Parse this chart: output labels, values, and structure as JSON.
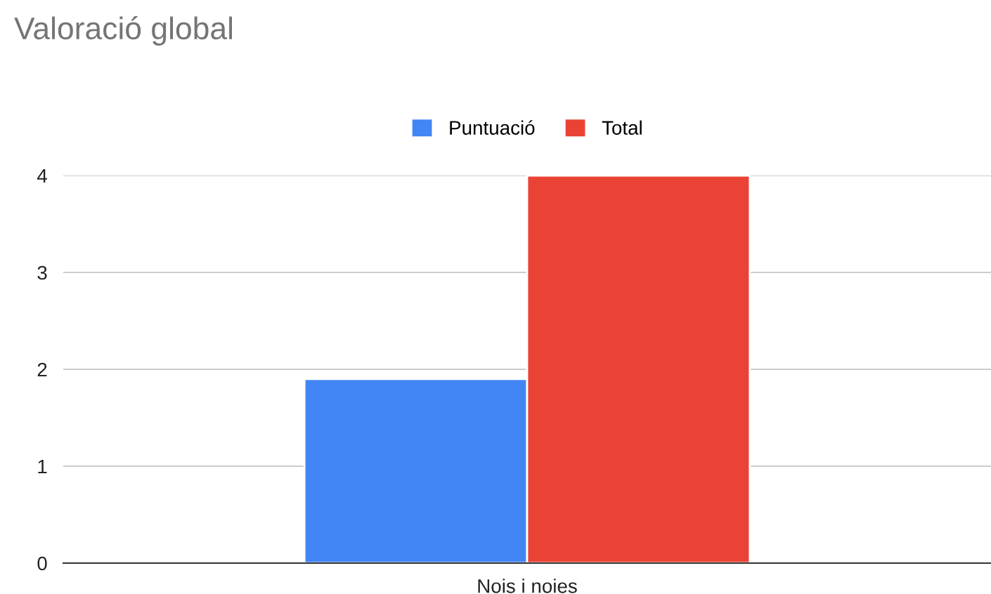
{
  "chart_data": {
    "type": "bar",
    "title": "Valoració global",
    "categories": [
      "Nois i noies"
    ],
    "series": [
      {
        "name": "Puntuació",
        "color": "#4285f4",
        "values": [
          1.9
        ]
      },
      {
        "name": "Total",
        "color": "#ea4335",
        "values": [
          4
        ]
      }
    ],
    "ylim": [
      0,
      4
    ],
    "yticks": [
      0,
      1,
      2,
      3,
      4
    ],
    "grid": "y",
    "legend": "top"
  }
}
